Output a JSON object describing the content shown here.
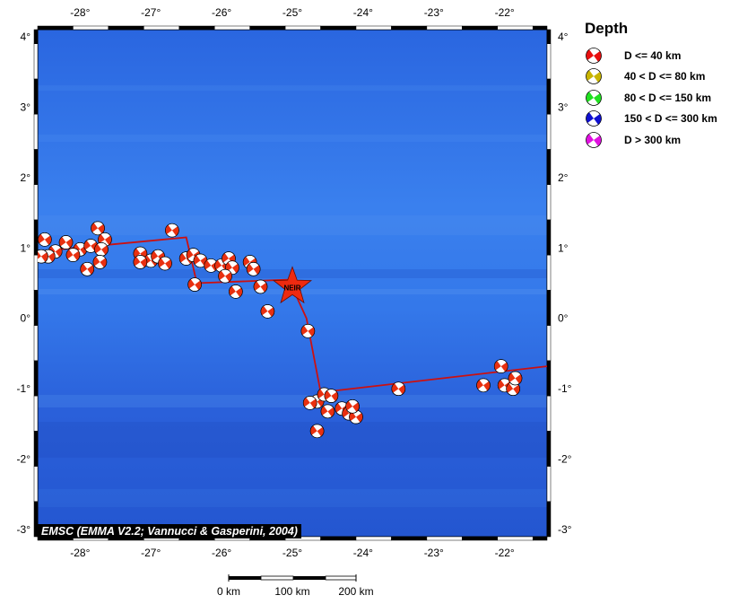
{
  "map": {
    "lon_labels": [
      "-28°",
      "-27°",
      "-26°",
      "-25°",
      "-24°",
      "-23°",
      "-22°"
    ],
    "lat_labels": [
      "4°",
      "3°",
      "2°",
      "1°",
      "0°",
      "-1°",
      "-2°",
      "-3°"
    ],
    "lon_range": [
      -28.6,
      -21.4
    ],
    "lat_range": [
      -3.1,
      4.1
    ],
    "ocean_color": "#2f6fe0",
    "plate_boundary_color": "#cc1010",
    "mechanism_color": "#e83010",
    "credit": "EMSC (EMMA V2.2; Vannucci & Gasperini, 2004)",
    "station": {
      "label": "NEIR",
      "lon": -25.0,
      "lat": 0.45
    },
    "plate_boundary": [
      [
        -28.6,
        0.95
      ],
      [
        -26.5,
        1.15
      ],
      [
        -26.35,
        0.5
      ],
      [
        -25.05,
        0.55
      ],
      [
        -24.8,
        0.0
      ],
      [
        -24.6,
        -1.05
      ],
      [
        -21.4,
        -0.68
      ]
    ],
    "mechanisms": [
      [
        -28.5,
        1.12
      ],
      [
        -28.35,
        0.95
      ],
      [
        -28.2,
        1.08
      ],
      [
        -28.0,
        0.98
      ],
      [
        -27.85,
        1.03
      ],
      [
        -27.75,
        1.28
      ],
      [
        -27.65,
        1.12
      ],
      [
        -27.7,
        0.98
      ],
      [
        -27.72,
        0.8
      ],
      [
        -28.45,
        0.88
      ],
      [
        -28.1,
        0.9
      ],
      [
        -27.9,
        0.7
      ],
      [
        -28.55,
        0.88
      ],
      [
        -27.15,
        0.92
      ],
      [
        -27.0,
        0.82
      ],
      [
        -26.9,
        0.88
      ],
      [
        -26.8,
        0.78
      ],
      [
        -27.15,
        0.8
      ],
      [
        -26.7,
        1.25
      ],
      [
        -26.5,
        0.85
      ],
      [
        -26.4,
        0.9
      ],
      [
        -26.3,
        0.82
      ],
      [
        -26.15,
        0.75
      ],
      [
        -26.0,
        0.75
      ],
      [
        -25.9,
        0.85
      ],
      [
        -25.85,
        0.72
      ],
      [
        -25.6,
        0.8
      ],
      [
        -25.55,
        0.7
      ],
      [
        -25.95,
        0.6
      ],
      [
        -26.38,
        0.48
      ],
      [
        -25.8,
        0.38
      ],
      [
        -25.45,
        0.45
      ],
      [
        -25.35,
        0.1
      ],
      [
        -24.78,
        -0.18
      ],
      [
        -24.65,
        -1.18
      ],
      [
        -24.55,
        -1.08
      ],
      [
        -24.45,
        -1.1
      ],
      [
        -24.3,
        -1.28
      ],
      [
        -24.2,
        -1.35
      ],
      [
        -24.1,
        -1.4
      ],
      [
        -24.15,
        -1.25
      ],
      [
        -24.75,
        -1.2
      ],
      [
        -24.5,
        -1.32
      ],
      [
        -24.65,
        -1.6
      ],
      [
        -23.5,
        -1.0
      ],
      [
        -22.3,
        -0.95
      ],
      [
        -22.05,
        -0.68
      ],
      [
        -22.0,
        -0.95
      ],
      [
        -21.88,
        -1.0
      ],
      [
        -21.85,
        -0.85
      ]
    ]
  },
  "legend": {
    "title": "Depth",
    "items": [
      {
        "label": "D <= 40 km",
        "color": "#e81010"
      },
      {
        "label": "40 < D <= 80 km",
        "color": "#c8b400"
      },
      {
        "label": "80 < D <= 150 km",
        "color": "#20e020"
      },
      {
        "label": "150 < D <= 300 km",
        "color": "#1010d0"
      },
      {
        "label": "D > 300 km",
        "color": "#e010e0"
      }
    ]
  },
  "scale_bar": {
    "labels": [
      "0 km",
      "100 km",
      "200 km"
    ]
  }
}
